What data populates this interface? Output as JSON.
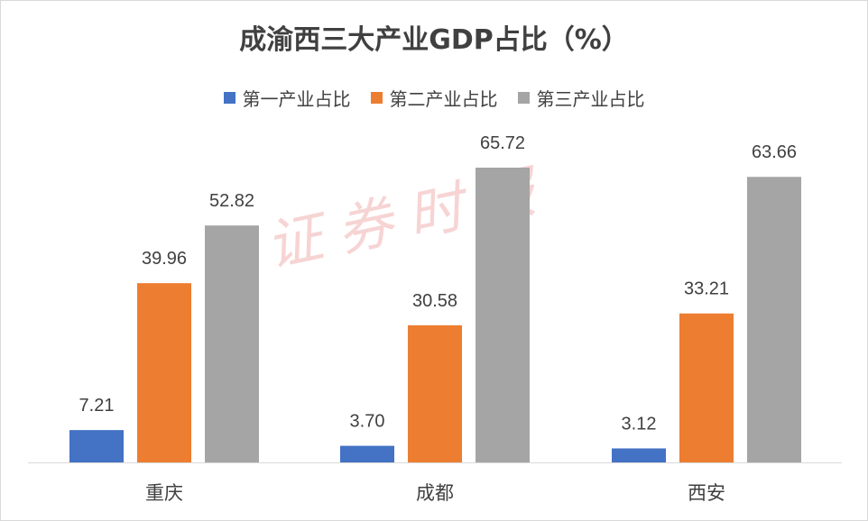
{
  "chart_data": {
    "type": "bar",
    "title": "成渝西三大产业GDP占比（%）",
    "categories": [
      "重庆",
      "成都",
      "西安"
    ],
    "series": [
      {
        "name": "第一产业占比",
        "color": "#4472C4",
        "values": [
          7.21,
          3.7,
          3.12
        ],
        "labels": [
          "7.21",
          "3.70",
          "3.12"
        ]
      },
      {
        "name": "第二产业占比",
        "color": "#ED7D31",
        "values": [
          39.96,
          30.58,
          33.21
        ],
        "labels": [
          "39.96",
          "30.58",
          "33.21"
        ]
      },
      {
        "name": "第三产业占比",
        "color": "#A5A5A5",
        "values": [
          52.82,
          65.72,
          63.66
        ],
        "labels": [
          "52.82",
          "65.72",
          "63.66"
        ]
      }
    ],
    "xlabel": "",
    "ylabel": "",
    "ylim": [
      0,
      70
    ],
    "grid": false,
    "legend": "top-center"
  },
  "watermark": "证券时报"
}
